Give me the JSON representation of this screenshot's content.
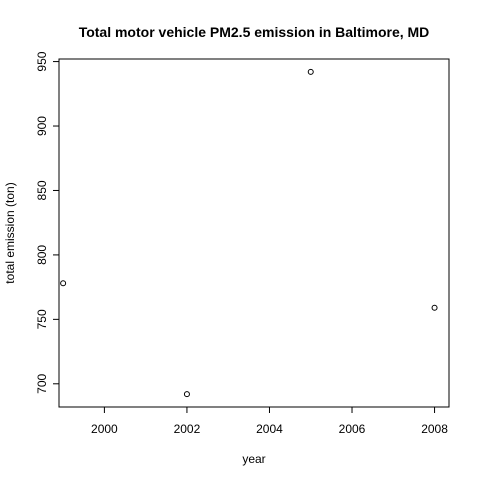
{
  "chart_data": {
    "type": "scatter",
    "title": "Total motor vehicle PM2.5 emission in Baltimore, MD",
    "xlabel": "year",
    "ylabel": "total emission (ton)",
    "x": [
      1999,
      2002,
      2005,
      2008
    ],
    "y": [
      778,
      692,
      942,
      759
    ],
    "xlim": [
      1998.9,
      2008.35
    ],
    "ylim": [
      682,
      952
    ],
    "x_ticks": [
      2000,
      2002,
      2004,
      2006,
      2008
    ],
    "y_ticks": [
      700,
      750,
      800,
      850,
      900,
      950
    ],
    "grid": false,
    "legend": "none",
    "marker": "open-circle",
    "point_color": "#000000"
  }
}
